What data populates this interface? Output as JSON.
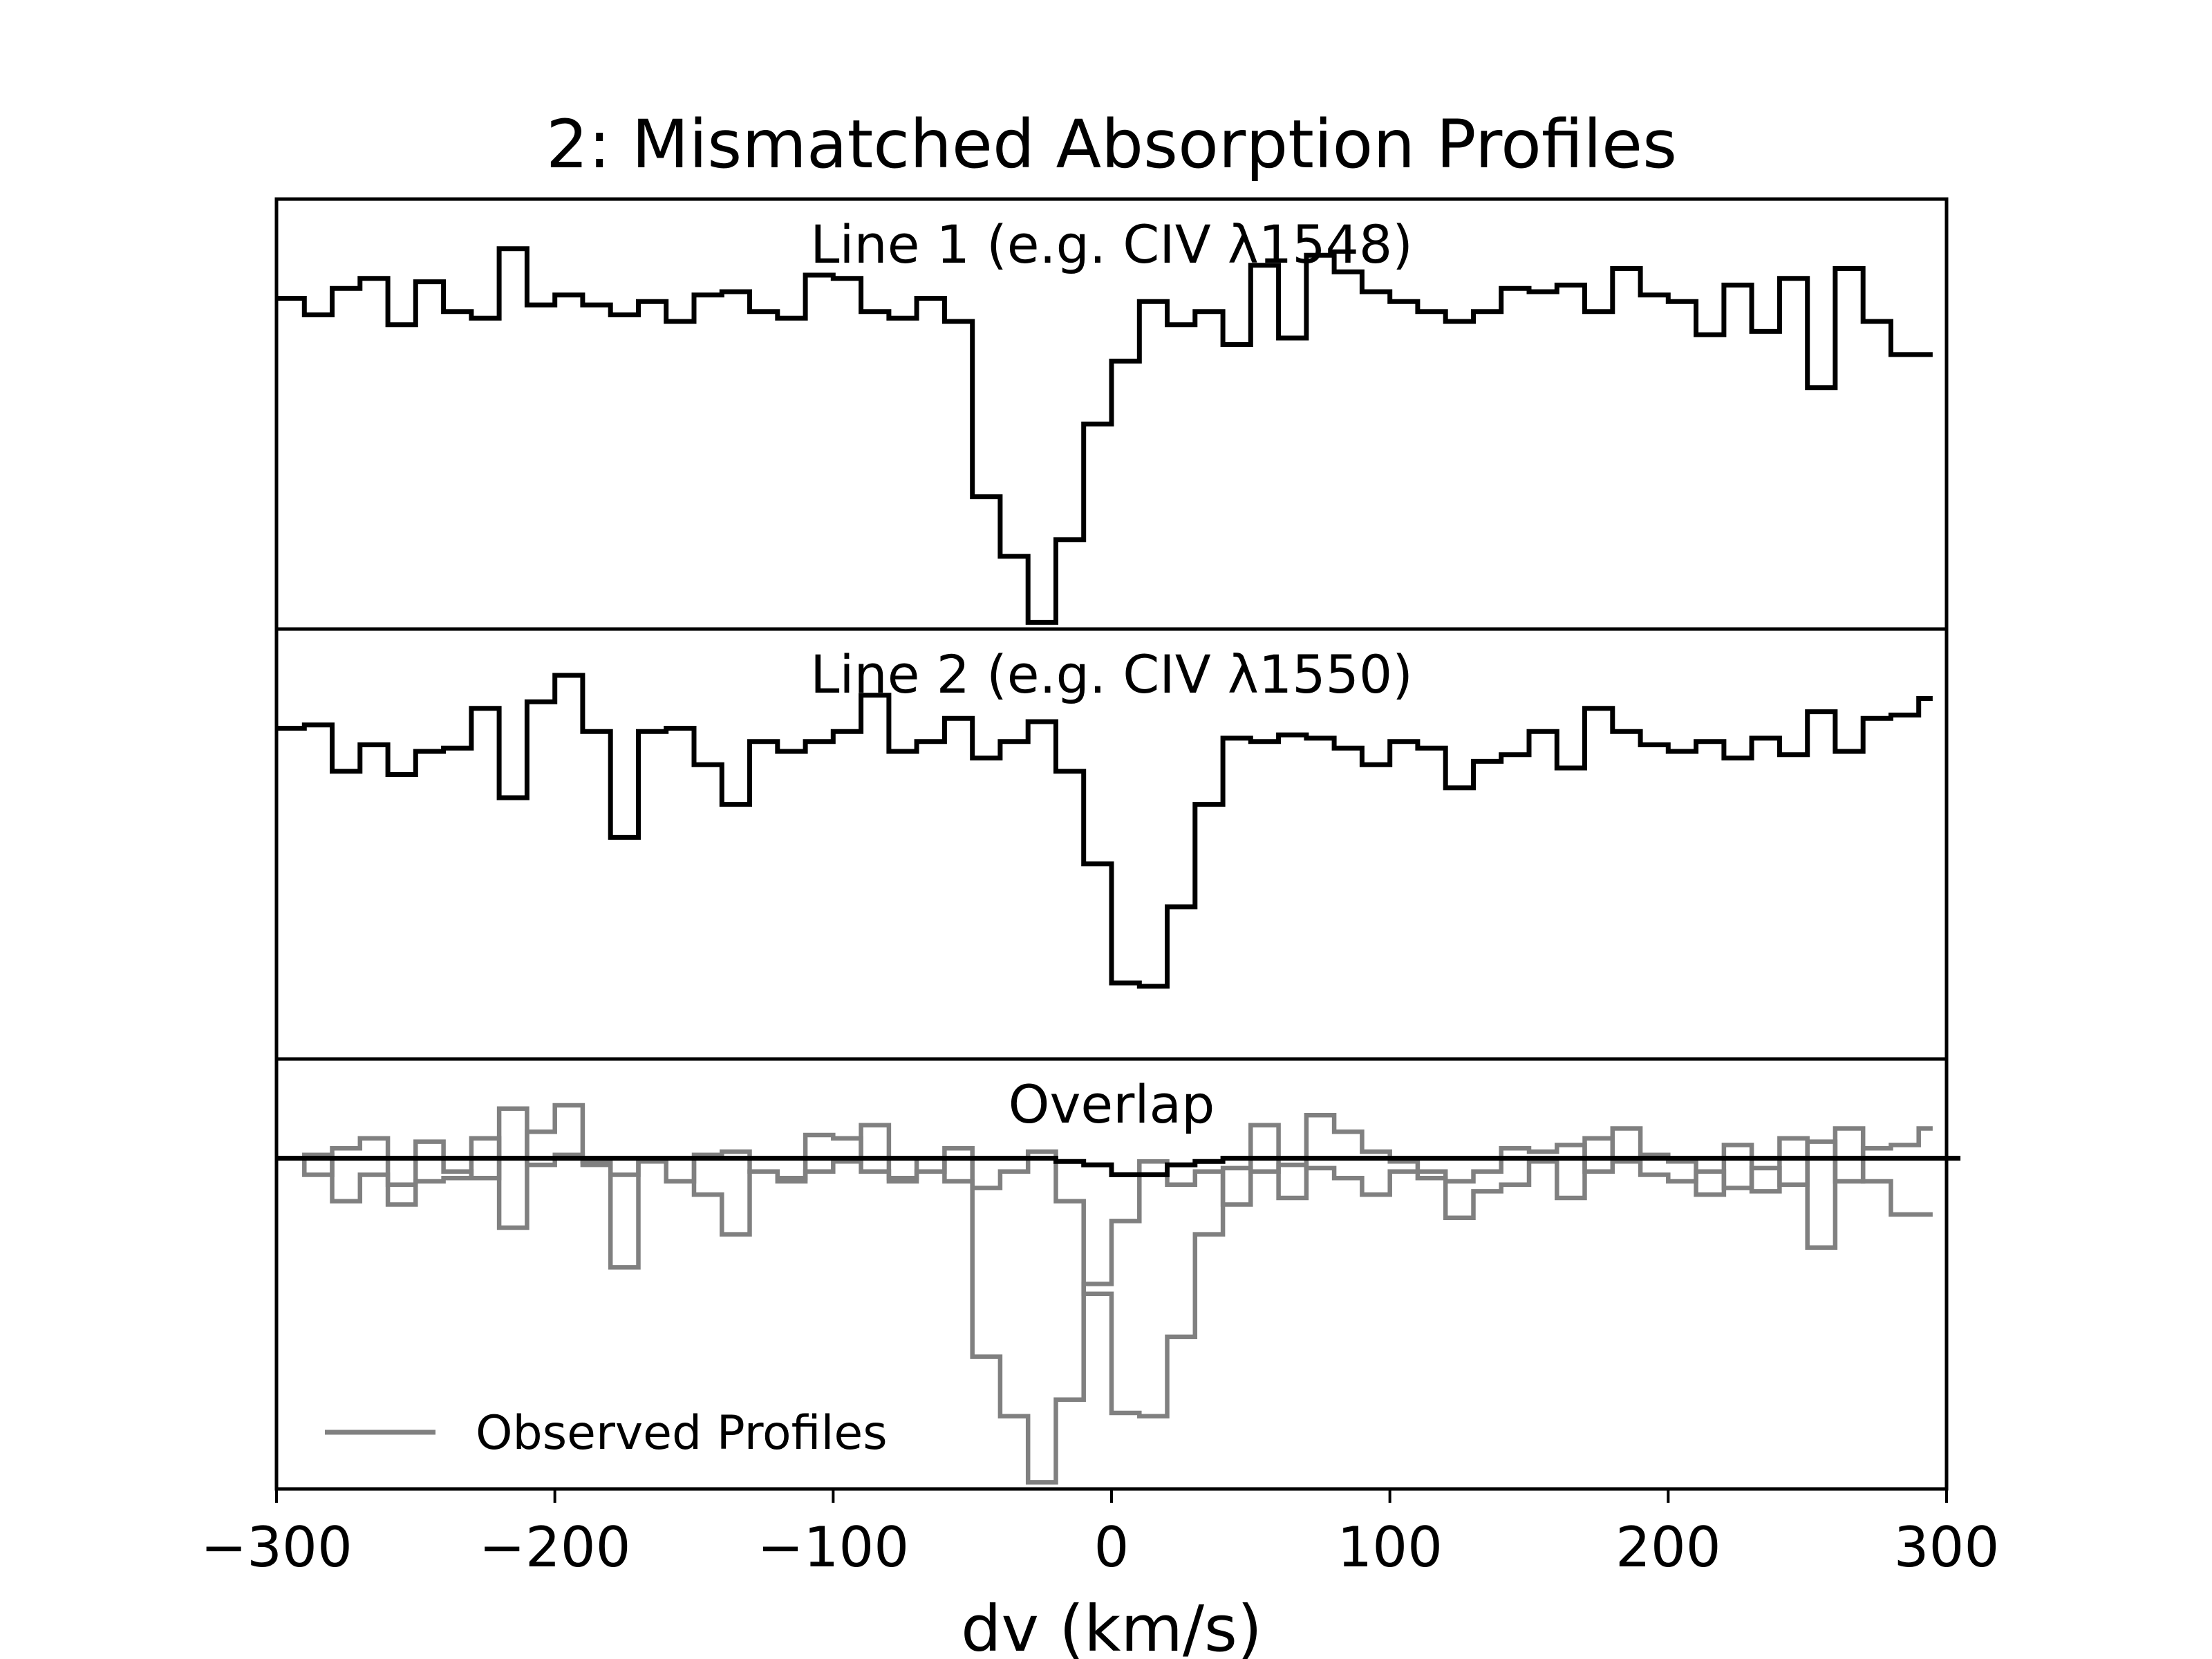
{
  "chart_data": {
    "type": "line",
    "title": "2: Mismatched Absorption Profiles",
    "xlabel": "dv (km/s)",
    "ylabel": "",
    "xlim": [
      -300,
      300
    ],
    "xticks": [
      -300,
      -200,
      -100,
      0,
      100,
      200,
      300
    ],
    "xtick_labels": [
      "−300",
      "−200",
      "−100",
      "0",
      "100",
      "200",
      "300"
    ],
    "ylim": [
      0.0,
      1.3
    ],
    "grid": false,
    "step_style": "post",
    "panels": [
      {
        "title": "Line 1 (e.g. CIV λ1548)",
        "series": [
          {
            "color": "#000000",
            "x": [
              -300,
              -290,
              -280,
              -270,
              -260,
              -250,
              -240,
              -230,
              -220,
              -210,
              -200,
              -190,
              -180,
              -170,
              -160,
              -150,
              -140,
              -130,
              -120,
              -110,
              -100,
              -90,
              -80,
              -70,
              -60,
              -50,
              -40,
              -30,
              -20,
              -10,
              0,
              10,
              20,
              30,
              40,
              50,
              60,
              70,
              80,
              90,
              100,
              110,
              120,
              130,
              140,
              150,
              160,
              170,
              180,
              190,
              200,
              210,
              220,
              230,
              240,
              250,
              260,
              270,
              280,
              290
            ],
            "y": [
              1.0,
              0.95,
              1.03,
              1.06,
              0.92,
              1.05,
              0.96,
              0.94,
              1.15,
              0.98,
              1.01,
              0.98,
              0.95,
              0.99,
              0.93,
              1.01,
              1.02,
              0.96,
              0.94,
              1.07,
              1.06,
              0.96,
              0.94,
              1.0,
              0.93,
              0.4,
              0.22,
              0.02,
              0.27,
              0.62,
              0.81,
              0.99,
              0.92,
              0.96,
              0.86,
              1.1,
              0.88,
              1.13,
              1.08,
              1.02,
              0.99,
              0.96,
              0.93,
              0.96,
              1.03,
              1.02,
              1.04,
              0.96,
              1.09,
              1.01,
              0.99,
              0.89,
              1.04,
              0.9,
              1.06,
              0.73,
              1.09,
              0.93,
              0.83,
              0.83
            ]
          }
        ]
      },
      {
        "title": "Line 2 (e.g. CIV λ1550)",
        "series": [
          {
            "color": "#000000",
            "x": [
              -300,
              -290,
              -280,
              -270,
              -260,
              -250,
              -240,
              -230,
              -220,
              -210,
              -200,
              -190,
              -180,
              -170,
              -160,
              -150,
              -140,
              -130,
              -120,
              -110,
              -100,
              -90,
              -80,
              -70,
              -60,
              -50,
              -40,
              -30,
              -20,
              -10,
              0,
              10,
              20,
              30,
              40,
              50,
              60,
              70,
              80,
              90,
              100,
              110,
              120,
              130,
              140,
              150,
              160,
              170,
              180,
              190,
              200,
              210,
              220,
              230,
              240,
              250,
              260,
              270,
              280,
              290
            ],
            "y": [
              1.0,
              1.01,
              0.87,
              0.95,
              0.86,
              0.93,
              0.94,
              1.06,
              0.79,
              1.08,
              1.16,
              0.99,
              0.67,
              0.99,
              1.0,
              0.89,
              0.77,
              0.96,
              0.93,
              0.96,
              0.99,
              1.1,
              0.93,
              0.96,
              1.03,
              0.91,
              0.96,
              1.02,
              0.87,
              0.59,
              0.23,
              0.22,
              0.46,
              0.77,
              0.97,
              0.96,
              0.98,
              0.97,
              0.94,
              0.89,
              0.96,
              0.94,
              0.82,
              0.9,
              0.92,
              0.99,
              0.88,
              1.06,
              0.99,
              0.95,
              0.93,
              0.96,
              0.91,
              0.97,
              0.92,
              1.05,
              0.93,
              1.03,
              1.04,
              1.09
            ]
          }
        ]
      },
      {
        "title": "Overlap",
        "legend": {
          "location": "lower-left",
          "entries": [
            {
              "label": "Observed Profiles",
              "color": "#808080"
            }
          ]
        },
        "series": [
          {
            "color": "#808080",
            "x": [
              -300,
              -290,
              -280,
              -270,
              -260,
              -250,
              -240,
              -230,
              -220,
              -210,
              -200,
              -190,
              -180,
              -170,
              -160,
              -150,
              -140,
              -130,
              -120,
              -110,
              -100,
              -90,
              -80,
              -70,
              -60,
              -50,
              -40,
              -30,
              -20,
              -10,
              0,
              10,
              20,
              30,
              40,
              50,
              60,
              70,
              80,
              90,
              100,
              110,
              120,
              130,
              140,
              150,
              160,
              170,
              180,
              190,
              200,
              210,
              220,
              230,
              240,
              250,
              260,
              270,
              280,
              290
            ],
            "y": [
              1.0,
              0.95,
              1.03,
              1.06,
              0.92,
              1.05,
              0.96,
              0.94,
              1.15,
              0.98,
              1.01,
              0.98,
              0.95,
              0.99,
              0.93,
              1.01,
              1.02,
              0.96,
              0.94,
              1.07,
              1.06,
              0.96,
              0.94,
              1.0,
              0.93,
              0.4,
              0.22,
              0.02,
              0.27,
              0.62,
              0.81,
              0.99,
              0.92,
              0.96,
              0.86,
              1.1,
              0.88,
              1.13,
              1.08,
              1.02,
              0.99,
              0.96,
              0.93,
              0.96,
              1.03,
              1.02,
              1.04,
              0.96,
              1.09,
              1.01,
              0.99,
              0.89,
              1.04,
              0.9,
              1.06,
              0.73,
              1.09,
              0.93,
              0.83,
              0.83
            ]
          },
          {
            "color": "#808080",
            "x": [
              -300,
              -290,
              -280,
              -270,
              -260,
              -250,
              -240,
              -230,
              -220,
              -210,
              -200,
              -190,
              -180,
              -170,
              -160,
              -150,
              -140,
              -130,
              -120,
              -110,
              -100,
              -90,
              -80,
              -70,
              -60,
              -50,
              -40,
              -30,
              -20,
              -10,
              0,
              10,
              20,
              30,
              40,
              50,
              60,
              70,
              80,
              90,
              100,
              110,
              120,
              130,
              140,
              150,
              160,
              170,
              180,
              190,
              200,
              210,
              220,
              230,
              240,
              250,
              260,
              270,
              280,
              290
            ],
            "y": [
              1.0,
              1.01,
              0.87,
              0.95,
              0.86,
              0.93,
              0.94,
              1.06,
              0.79,
              1.08,
              1.16,
              0.99,
              0.67,
              0.99,
              1.0,
              0.89,
              0.77,
              0.96,
              0.93,
              0.96,
              0.99,
              1.1,
              0.93,
              0.96,
              1.03,
              0.91,
              0.96,
              1.02,
              0.87,
              0.59,
              0.23,
              0.22,
              0.46,
              0.77,
              0.97,
              0.96,
              0.98,
              0.97,
              0.94,
              0.89,
              0.96,
              0.94,
              0.82,
              0.9,
              0.92,
              0.99,
              0.88,
              1.06,
              0.99,
              0.95,
              0.93,
              0.96,
              0.91,
              0.97,
              0.92,
              1.05,
              0.93,
              1.03,
              1.04,
              1.09
            ]
          },
          {
            "color": "#000000",
            "x": [
              -300,
              -290,
              -280,
              -270,
              -260,
              -250,
              -240,
              -230,
              -220,
              -210,
              -200,
              -190,
              -180,
              -170,
              -160,
              -150,
              -140,
              -130,
              -120,
              -110,
              -100,
              -90,
              -80,
              -70,
              -60,
              -50,
              -40,
              -30,
              -20,
              -10,
              0,
              10,
              20,
              30,
              40,
              50,
              60,
              70,
              80,
              90,
              100,
              110,
              120,
              130,
              140,
              150,
              160,
              170,
              180,
              190,
              200,
              210,
              220,
              230,
              240,
              250,
              260,
              270,
              280,
              290,
              300
            ],
            "y": [
              1.0,
              1.0,
              1.0,
              1.0,
              1.0,
              1.0,
              1.0,
              1.0,
              1.0,
              1.0,
              1.0,
              1.0,
              1.0,
              1.0,
              1.0,
              1.0,
              1.0,
              1.0,
              1.0,
              1.0,
              1.0,
              1.0,
              1.0,
              1.0,
              1.0,
              1.0,
              1.0,
              1.0,
              0.99,
              0.98,
              0.95,
              0.95,
              0.98,
              0.99,
              1.0,
              1.0,
              1.0,
              1.0,
              1.0,
              1.0,
              1.0,
              1.0,
              1.0,
              1.0,
              1.0,
              1.0,
              1.0,
              1.0,
              1.0,
              1.0,
              1.0,
              1.0,
              1.0,
              1.0,
              1.0,
              1.0,
              1.0,
              1.0,
              1.0,
              1.0,
              1.0
            ]
          }
        ]
      }
    ]
  }
}
